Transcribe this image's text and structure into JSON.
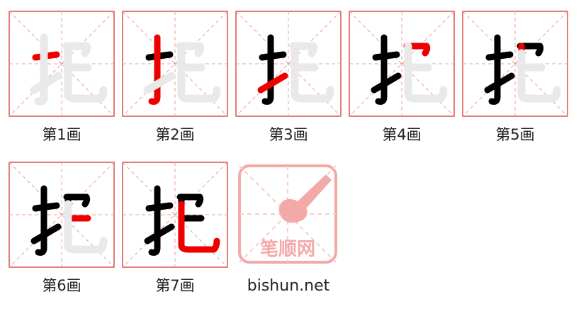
{
  "character": "把",
  "colors": {
    "grid_border": "#d9534f",
    "guide_line": "#e8a0a0",
    "ghost_char": "#e9e9e9",
    "done_stroke": "#000000",
    "current_stroke": "#ee0000",
    "logo": "#f4a9a9"
  },
  "steps": [
    {
      "label": "第1画",
      "current_stroke": 1
    },
    {
      "label": "第2画",
      "current_stroke": 2
    },
    {
      "label": "第3画",
      "current_stroke": 3
    },
    {
      "label": "第4画",
      "current_stroke": 4
    },
    {
      "label": "第5画",
      "current_stroke": 5
    },
    {
      "label": "第6画",
      "current_stroke": 6
    },
    {
      "label": "第7画",
      "current_stroke": 7
    }
  ],
  "logo": {
    "text": "笔顺网",
    "icon": "brush-icon"
  },
  "site": "bishun.net"
}
